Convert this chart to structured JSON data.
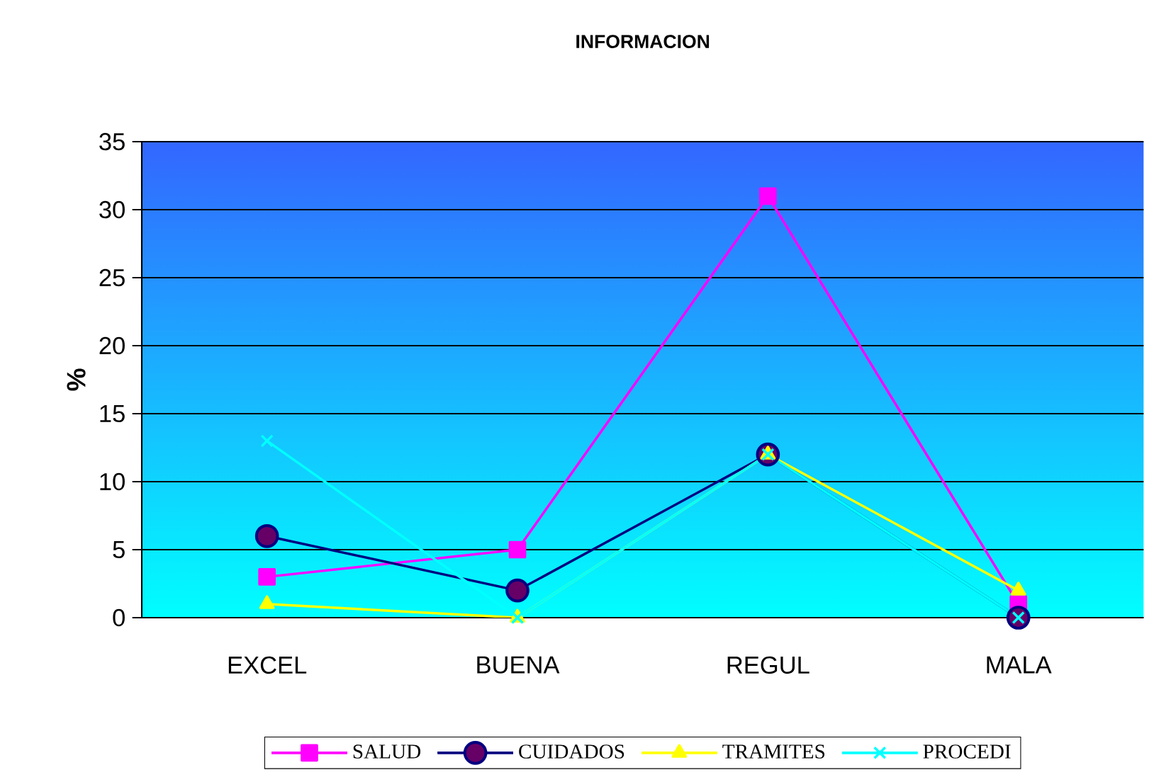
{
  "chart_data": {
    "type": "line",
    "title": "INFORMACION",
    "ylabel": "%",
    "categories": [
      "EXCEL",
      "BUENA",
      "REGUL",
      "MALA"
    ],
    "series": [
      {
        "name": "SALUD",
        "color": "#ff00ff",
        "marker": "square",
        "values": [
          3,
          5,
          31,
          1
        ]
      },
      {
        "name": "CUIDADOS",
        "color": "#000080",
        "marker": "circle",
        "values": [
          6,
          2,
          12,
          0
        ]
      },
      {
        "name": "TRAMITES",
        "color": "#ffff00",
        "marker": "triangle",
        "values": [
          1,
          0,
          12,
          2
        ]
      },
      {
        "name": "PROCEDI",
        "color": "#00ffff",
        "marker": "cross",
        "values": [
          13,
          0,
          12,
          0
        ]
      }
    ],
    "ylim": [
      0,
      35
    ],
    "yticks": [
      0,
      5,
      10,
      15,
      20,
      25,
      30,
      35
    ],
    "grid": "y",
    "legend": "bottom"
  }
}
